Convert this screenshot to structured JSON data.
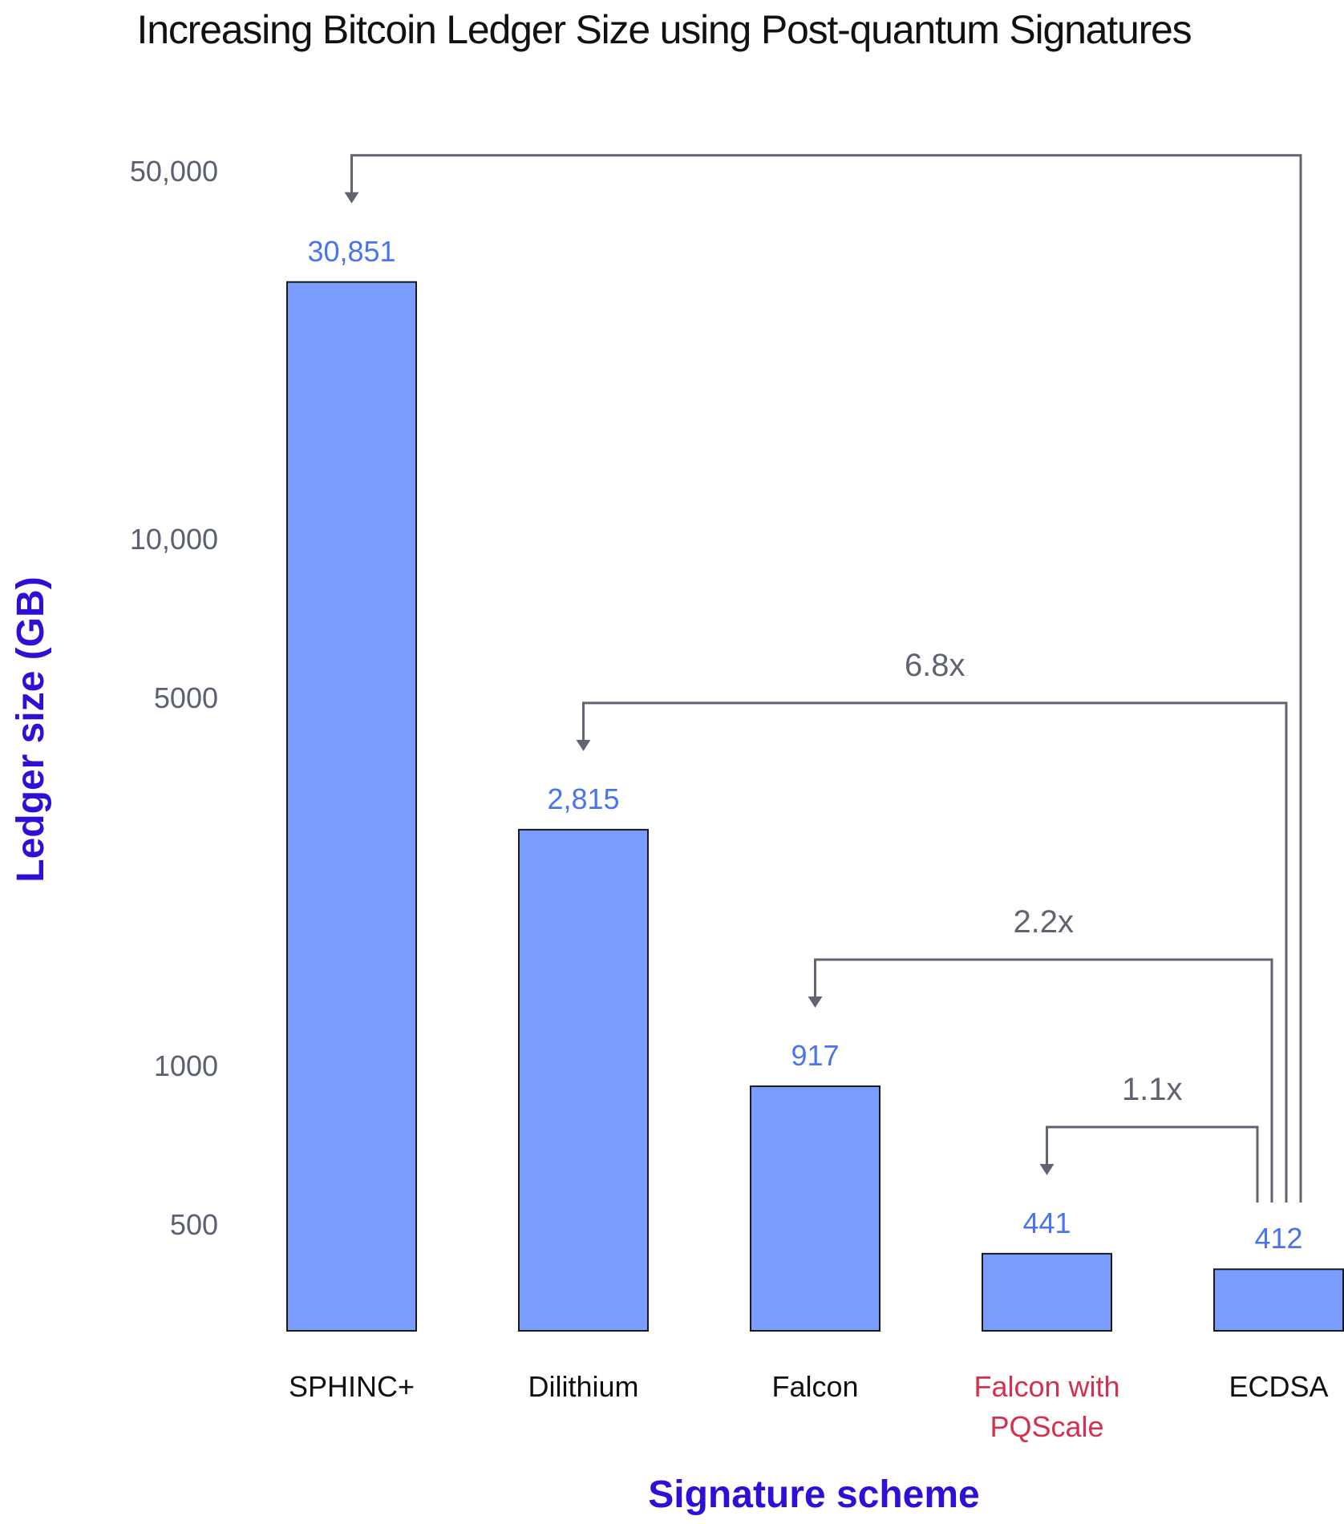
{
  "colors": {
    "bar_fill": "#7b9cff",
    "bar_stroke": "#1a1a1a",
    "value_label": "#4a73f0",
    "tick_label": "#5b6072",
    "axis_title": "#2c10d6",
    "title": "#111111",
    "category_label": "#111111",
    "category_highlight": "#d6304e",
    "connector": "#5f6470"
  },
  "chart_data": {
    "type": "bar",
    "title": "Increasing Bitcoin Ledger Size using Post-quantum Signatures",
    "xlabel": "Signature scheme",
    "ylabel": "Ledger size (GB)",
    "yscale": "log",
    "yticks": [
      {
        "value": 50000,
        "label": "50,000"
      },
      {
        "value": 10000,
        "label": "10,000"
      },
      {
        "value": 5000,
        "label": "5000"
      },
      {
        "value": 1000,
        "label": "1000"
      },
      {
        "value": 500,
        "label": "500"
      }
    ],
    "grid": false,
    "legend": "none",
    "categories": [
      {
        "label_lines": [
          "SPHINC+"
        ],
        "highlight": false
      },
      {
        "label_lines": [
          "Dilithium"
        ],
        "highlight": false
      },
      {
        "label_lines": [
          "Falcon"
        ],
        "highlight": false
      },
      {
        "label_lines": [
          "Falcon with",
          "PQScale"
        ],
        "highlight": true
      },
      {
        "label_lines": [
          "ECDSA"
        ],
        "highlight": false
      }
    ],
    "values": [
      30851,
      2815,
      917,
      441,
      412
    ],
    "value_labels": [
      "30,851",
      "2,815",
      "917",
      "441",
      "412"
    ],
    "comparisons": [
      {
        "from": 4,
        "to": 0,
        "label": ""
      },
      {
        "from": 4,
        "to": 1,
        "label": "6.8x"
      },
      {
        "from": 4,
        "to": 2,
        "label": "2.2x"
      },
      {
        "from": 4,
        "to": 3,
        "label": "1.1x"
      }
    ]
  }
}
